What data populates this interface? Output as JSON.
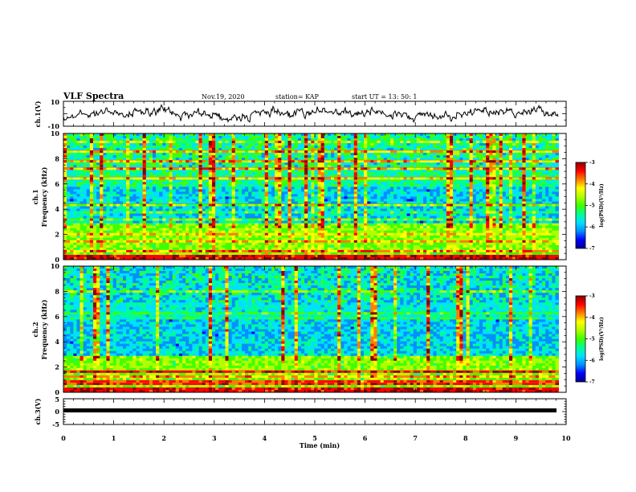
{
  "header": {
    "title": "VLF Spectra",
    "date": "Nov.19, 2020",
    "station": "station= KAP",
    "start": "start  UT  =   13: 50: 1"
  },
  "chart_data": [
    {
      "id": "ch1-waveform",
      "type": "line",
      "ylabel": "ch.1(V)",
      "ylim": [
        -10,
        10
      ],
      "yticks": [
        "10",
        "-10"
      ],
      "xlim": [
        0,
        10
      ]
    },
    {
      "id": "ch1-spectrogram",
      "type": "heatmap",
      "ylabel": "ch.1\nFrequency (kHz)",
      "ylim": [
        0,
        10
      ],
      "yticks": [
        "0",
        "2",
        "4",
        "6",
        "8",
        "10"
      ],
      "xlim": [
        0,
        10
      ],
      "colorbar": {
        "label": "log(PSD)(V²/Hz)",
        "range": [
          -7,
          -3
        ],
        "ticks": [
          "-3",
          "-4",
          "-5",
          "-6",
          "-7"
        ]
      }
    },
    {
      "id": "ch2-spectrogram",
      "type": "heatmap",
      "ylabel": "ch.2\nFrequency (kHz)",
      "ylim": [
        0,
        10
      ],
      "yticks": [
        "0",
        "2",
        "4",
        "6",
        "8",
        "10"
      ],
      "xlim": [
        0,
        10
      ],
      "colorbar": {
        "label": "log(PSD)(V²/Hz)",
        "range": [
          -7,
          -3
        ],
        "ticks": [
          "-3",
          "-4",
          "-5",
          "-6",
          "-7"
        ]
      }
    },
    {
      "id": "ch3-waveform",
      "type": "line",
      "ylabel": "ch.3(V)",
      "ylim": [
        -5,
        5
      ],
      "yticks": [
        "5",
        "0",
        "-5"
      ],
      "xlim": [
        0,
        10
      ]
    }
  ],
  "xaxis": {
    "label": "Time  (min)",
    "ticks": [
      "0",
      "1",
      "2",
      "3",
      "4",
      "5",
      "6",
      "7",
      "8",
      "9",
      "10"
    ],
    "data_end_min": 9.85
  },
  "colormap": [
    "#00008b",
    "#0000ff",
    "#0090ff",
    "#00e0ff",
    "#00ff90",
    "#40ff00",
    "#b0ff00",
    "#ffff00",
    "#ff8000",
    "#ff0000",
    "#8b0000"
  ],
  "labels": {
    "ch1_spec_line1": "ch.1",
    "ch1_spec_line2": "Frequency  (kHz)",
    "ch2_spec_line1": "ch.2",
    "ch2_spec_line2": "Frequency  (kHz)",
    "cb_label": "log(PSD)(V²/Hz)"
  }
}
